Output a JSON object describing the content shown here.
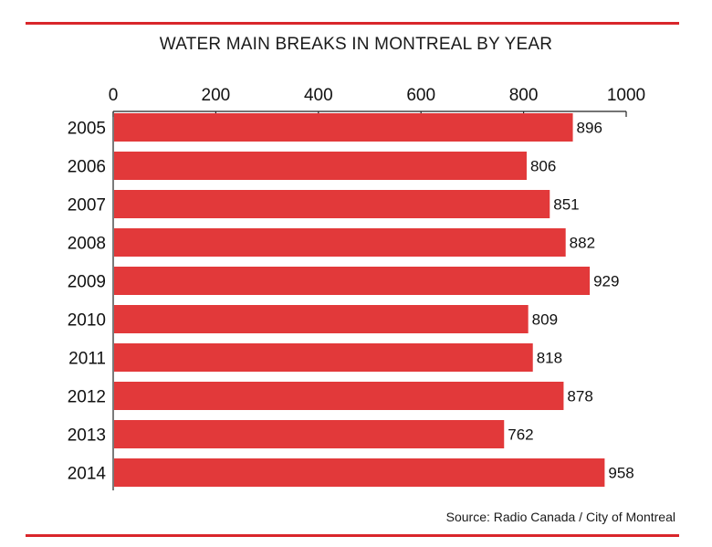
{
  "chart_data": {
    "type": "bar",
    "orientation": "horizontal",
    "title": "WATER MAIN BREAKS IN MONTREAL BY YEAR",
    "categories": [
      "2005",
      "2006",
      "2007",
      "2008",
      "2009",
      "2010",
      "2011",
      "2012",
      "2013",
      "2014"
    ],
    "values": [
      896,
      806,
      851,
      882,
      929,
      809,
      818,
      878,
      762,
      958
    ],
    "xlim": [
      0,
      1000
    ],
    "xticks": [
      "0",
      "200",
      "400",
      "600",
      "800",
      "1000"
    ],
    "xaxis_position": "top",
    "grid": false,
    "legend": "none",
    "bar_color": "#e2393a",
    "data_labels": true
  },
  "source": "Source: Radio Canada / City of Montreal",
  "colors": {
    "accent_rule": "#d9262b",
    "bar": "#e2393a",
    "text": "#111111"
  }
}
